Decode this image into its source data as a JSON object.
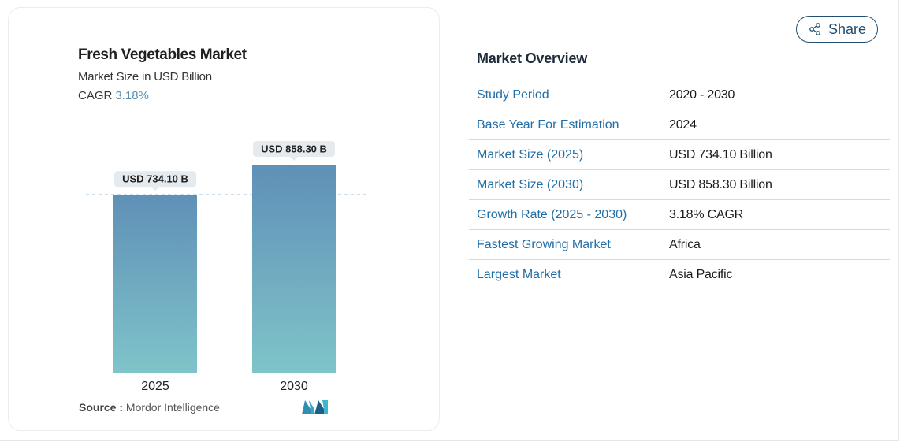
{
  "share": {
    "label": "Share"
  },
  "chart_data": {
    "type": "bar",
    "title": "Fresh Vegetables Market",
    "subtitle": "Market Size in USD Billion",
    "cagr_label": "CAGR",
    "cagr_value": "3.18%",
    "categories": [
      "2025",
      "2030"
    ],
    "values": [
      734.1,
      858.3
    ],
    "data_labels": [
      "USD 734.10 B",
      "USD 858.30 B"
    ],
    "ylim": [
      0,
      858.3
    ],
    "grid": false,
    "reference_line": {
      "value": 734.1,
      "style": "dashed"
    },
    "colors": {
      "bar_top": "#5f90b7",
      "bar_bottom": "#7fc4c9",
      "label_bg": "#e4eaee",
      "dash": "#7fa8c6"
    }
  },
  "source": {
    "label": "Source :",
    "value": "Mordor Intelligence"
  },
  "overview": {
    "title": "Market Overview",
    "rows": [
      {
        "key": "Study Period",
        "value": "2020 - 2030"
      },
      {
        "key": "Base Year For Estimation",
        "value": "2024"
      },
      {
        "key": "Market Size (2025)",
        "value": "USD 734.10 Billion"
      },
      {
        "key": "Market Size (2030)",
        "value": "USD 858.30 Billion"
      },
      {
        "key": "Growth Rate (2025 - 2030)",
        "value": "3.18% CAGR"
      },
      {
        "key": "Fastest Growing Market",
        "value": "Africa"
      },
      {
        "key": "Largest Market",
        "value": "Asia Pacific"
      }
    ]
  }
}
